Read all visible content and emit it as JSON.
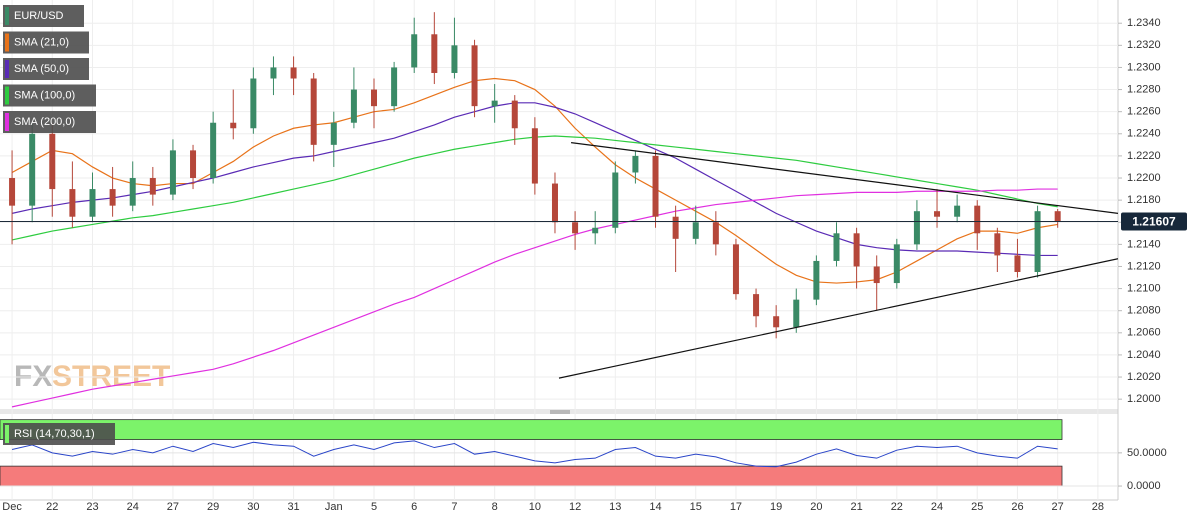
{
  "chart_data": [
    {
      "type": "candlestick",
      "legend": "EUR/USD",
      "up_color": "#3a8a66",
      "down_color": "#b5473a",
      "xlim": [
        -0.6,
        55
      ],
      "ylim": [
        1.1992,
        1.2361
      ],
      "yticks": [
        {
          "value": 1.2,
          "label": "1.2000"
        },
        {
          "value": 1.202,
          "label": "1.2020"
        },
        {
          "value": 1.204,
          "label": "1.2040"
        },
        {
          "value": 1.206,
          "label": "1.2060"
        },
        {
          "value": 1.208,
          "label": "1.2080"
        },
        {
          "value": 1.21,
          "label": "1.2100"
        },
        {
          "value": 1.212,
          "label": "1.2120"
        },
        {
          "value": 1.214,
          "label": "1.2140"
        },
        {
          "value": 1.216,
          "label": "1.2160"
        },
        {
          "value": 1.218,
          "label": "1.2180"
        },
        {
          "value": 1.22,
          "label": "1.2200"
        },
        {
          "value": 1.222,
          "label": "1.2220"
        },
        {
          "value": 1.224,
          "label": "1.2240"
        },
        {
          "value": 1.226,
          "label": "1.2260"
        },
        {
          "value": 1.228,
          "label": "1.2280"
        },
        {
          "value": 1.23,
          "label": "1.2300"
        },
        {
          "value": 1.232,
          "label": "1.2320"
        },
        {
          "value": 1.234,
          "label": "1.2340"
        }
      ],
      "grid": true,
      "open": [
        1.22,
        1.2175,
        1.224,
        1.219,
        1.2165,
        1.219,
        1.2175,
        1.22,
        1.2185,
        1.2225,
        1.22,
        1.225,
        1.2245,
        1.229,
        1.23,
        1.229,
        1.223,
        1.225,
        1.228,
        1.2265,
        1.23,
        1.233,
        1.2295,
        1.232,
        1.2265,
        1.227,
        1.2245,
        1.2195,
        1.216,
        1.215,
        1.2155,
        1.2205,
        1.222,
        1.2165,
        1.2145,
        1.216,
        1.214,
        1.2095,
        1.2075,
        1.2065,
        1.209,
        1.2125,
        1.215,
        1.212,
        1.2105,
        1.214,
        1.217,
        1.2165,
        1.2175,
        1.215,
        1.213,
        1.2115,
        1.217
      ],
      "high": [
        1.2225,
        1.225,
        1.225,
        1.2215,
        1.2205,
        1.221,
        1.2215,
        1.221,
        1.2235,
        1.223,
        1.226,
        1.228,
        1.23,
        1.231,
        1.231,
        1.2295,
        1.226,
        1.23,
        1.229,
        1.2305,
        1.2345,
        1.235,
        1.2345,
        1.2325,
        1.2285,
        1.2275,
        1.2255,
        1.2205,
        1.217,
        1.217,
        1.2215,
        1.2225,
        1.2225,
        1.2175,
        1.2175,
        1.217,
        1.2145,
        1.21,
        1.2085,
        1.21,
        1.213,
        1.216,
        1.2155,
        1.213,
        1.2145,
        1.218,
        1.219,
        1.2185,
        1.218,
        1.2155,
        1.2145,
        1.2175,
        1.2172
      ],
      "low": [
        1.214,
        1.216,
        1.2165,
        1.2155,
        1.216,
        1.2165,
        1.217,
        1.2175,
        1.218,
        1.219,
        1.2195,
        1.2235,
        1.224,
        1.2275,
        1.2275,
        1.2215,
        1.221,
        1.2245,
        1.2245,
        1.226,
        1.2295,
        1.2285,
        1.229,
        1.2255,
        1.225,
        1.223,
        1.2185,
        1.215,
        1.2135,
        1.214,
        1.215,
        1.2195,
        1.2155,
        1.2115,
        1.214,
        1.213,
        1.209,
        1.2065,
        1.2055,
        1.206,
        1.2085,
        1.212,
        1.21,
        1.208,
        1.21,
        1.2135,
        1.2155,
        1.216,
        1.2135,
        1.2115,
        1.211,
        1.211,
        1.2155
      ],
      "close": [
        1.2175,
        1.224,
        1.219,
        1.2165,
        1.219,
        1.2175,
        1.22,
        1.2185,
        1.2225,
        1.22,
        1.225,
        1.2245,
        1.229,
        1.23,
        1.229,
        1.223,
        1.225,
        1.228,
        1.2265,
        1.23,
        1.233,
        1.2295,
        1.232,
        1.2265,
        1.227,
        1.2245,
        1.2195,
        1.216,
        1.215,
        1.2155,
        1.2205,
        1.222,
        1.2165,
        1.2145,
        1.216,
        1.214,
        1.2095,
        1.2075,
        1.2065,
        1.209,
        1.2125,
        1.215,
        1.212,
        1.2105,
        1.214,
        1.217,
        1.2165,
        1.2175,
        1.215,
        1.213,
        1.2115,
        1.217,
        1.2161
      ],
      "series": [
        {
          "name": "SMA (21,0)",
          "color": "#e8731a",
          "values": [
            1.2205,
            1.2215,
            1.2225,
            1.2222,
            1.221,
            1.22,
            1.2195,
            1.2193,
            1.2195,
            1.2195,
            1.2205,
            1.2215,
            1.2228,
            1.2238,
            1.2245,
            1.2248,
            1.225,
            1.2255,
            1.226,
            1.2262,
            1.2268,
            1.2275,
            1.2282,
            1.2288,
            1.229,
            1.2288,
            1.228,
            1.2265,
            1.2245,
            1.2228,
            1.2212,
            1.22,
            1.219,
            1.218,
            1.217,
            1.216,
            1.2148,
            1.2135,
            1.2122,
            1.2112,
            1.2106,
            1.2105,
            1.2106,
            1.2108,
            1.2115,
            1.2125,
            1.2135,
            1.2145,
            1.2152,
            1.2152,
            1.215,
            1.2155,
            1.2158
          ]
        },
        {
          "name": "SMA (50,0)",
          "color": "#5a2bb5",
          "values": [
            1.2168,
            1.2172,
            1.2175,
            1.2178,
            1.218,
            1.2182,
            1.2185,
            1.2188,
            1.2192,
            1.2196,
            1.22,
            1.2205,
            1.221,
            1.2214,
            1.2218,
            1.222,
            1.2224,
            1.2228,
            1.2232,
            1.2236,
            1.2242,
            1.2248,
            1.2255,
            1.226,
            1.2265,
            1.2268,
            1.2268,
            1.2264,
            1.2258,
            1.225,
            1.2242,
            1.2234,
            1.2226,
            1.2218,
            1.2208,
            1.2198,
            1.2188,
            1.2178,
            1.2168,
            1.216,
            1.2152,
            1.2146,
            1.214,
            1.2137,
            1.2135,
            1.2134,
            1.2134,
            1.2134,
            1.2133,
            1.2132,
            1.2131,
            1.213,
            1.213
          ]
        },
        {
          "name": "SMA (100,0)",
          "color": "#2ecc40",
          "values": [
            1.2144,
            1.2148,
            1.2152,
            1.2155,
            1.2158,
            1.2161,
            1.2164,
            1.2166,
            1.2169,
            1.2172,
            1.2175,
            1.2178,
            1.2182,
            1.2186,
            1.219,
            1.2194,
            1.2198,
            1.2203,
            1.2208,
            1.2213,
            1.2218,
            1.2222,
            1.2226,
            1.2229,
            1.2232,
            1.2235,
            1.2237,
            1.2238,
            1.2237,
            1.2236,
            1.2234,
            1.2232,
            1.223,
            1.2228,
            1.2226,
            1.2224,
            1.2222,
            1.222,
            1.2218,
            1.2216,
            1.2213,
            1.221,
            1.2207,
            1.2204,
            1.2201,
            1.2198,
            1.2195,
            1.2192,
            1.2189,
            1.2185,
            1.2181,
            1.2177,
            1.2174
          ]
        },
        {
          "name": "SMA (200,0)",
          "color": "#e030e0",
          "values": [
            1.1993,
            1.1997,
            1.2001,
            1.2005,
            1.2009,
            1.2012,
            1.2015,
            1.2018,
            1.2021,
            1.2024,
            1.2027,
            1.2032,
            1.2038,
            1.2044,
            1.2051,
            1.2058,
            1.2065,
            1.2072,
            1.2079,
            1.2086,
            1.2092,
            1.21,
            1.2108,
            1.2116,
            1.2124,
            1.2131,
            1.2137,
            1.2143,
            1.2149,
            1.2154,
            1.2158,
            1.2162,
            1.2166,
            1.217,
            1.2173,
            1.2176,
            1.2178,
            1.218,
            1.2182,
            1.2184,
            1.2185,
            1.2186,
            1.2187,
            1.2187,
            1.2187,
            1.2188,
            1.2188,
            1.2188,
            1.2188,
            1.2189,
            1.2189,
            1.219,
            1.219
          ]
        }
      ],
      "trendlines": [
        {
          "x": [
            27.8,
            55
          ],
          "values": [
            1.2232,
            1.2168
          ]
        },
        {
          "x": [
            27.2,
            55
          ],
          "values": [
            1.2019,
            1.2127
          ]
        }
      ],
      "last_price": 1.21607,
      "watermark": [
        "FX",
        "STREET"
      ]
    },
    {
      "type": "line",
      "legend": "RSI (14,70,30,1)",
      "color": "#2a45c8",
      "xlim": [
        -0.6,
        55
      ],
      "ylim": [
        -21,
        107
      ],
      "upper": 70,
      "lower": 30,
      "upper_color": "#7cf36a",
      "lower_color": "#f57b7b",
      "yticks": [
        {
          "value": 50,
          "label": "50.0000"
        },
        {
          "value": 0,
          "label": "0.0000"
        }
      ],
      "values": [
        55,
        62,
        50,
        45,
        52,
        48,
        55,
        50,
        60,
        52,
        64,
        58,
        66,
        62,
        60,
        45,
        55,
        62,
        55,
        65,
        68,
        58,
        64,
        48,
        52,
        45,
        38,
        35,
        40,
        42,
        55,
        58,
        45,
        42,
        48,
        44,
        35,
        30,
        29,
        36,
        48,
        56,
        46,
        42,
        54,
        60,
        58,
        60,
        50,
        45,
        42,
        60,
        56
      ],
      "xticks": [
        {
          "value": 0,
          "label": "Dec"
        },
        {
          "value": 2,
          "label": "22"
        },
        {
          "value": 4,
          "label": "23"
        },
        {
          "value": 6,
          "label": "24"
        },
        {
          "value": 8,
          "label": "27"
        },
        {
          "value": 10,
          "label": "29"
        },
        {
          "value": 12,
          "label": "30"
        },
        {
          "value": 14,
          "label": "31"
        },
        {
          "value": 16,
          "label": "Jan"
        },
        {
          "value": 18,
          "label": "5"
        },
        {
          "value": 20,
          "label": "6"
        },
        {
          "value": 22,
          "label": "7"
        },
        {
          "value": 24,
          "label": "8"
        },
        {
          "value": 26,
          "label": "10"
        },
        {
          "value": 28,
          "label": "12"
        },
        {
          "value": 30,
          "label": "13"
        },
        {
          "value": 32,
          "label": "14"
        },
        {
          "value": 34,
          "label": "15"
        },
        {
          "value": 36,
          "label": "17"
        },
        {
          "value": 38,
          "label": "19"
        },
        {
          "value": 40,
          "label": "20"
        },
        {
          "value": 42,
          "label": "21"
        },
        {
          "value": 44,
          "label": "22"
        },
        {
          "value": 46,
          "label": "24"
        },
        {
          "value": 48,
          "label": "25"
        },
        {
          "value": 50,
          "label": "26"
        },
        {
          "value": 52,
          "label": "27"
        },
        {
          "value": 54,
          "label": "28"
        }
      ]
    }
  ]
}
